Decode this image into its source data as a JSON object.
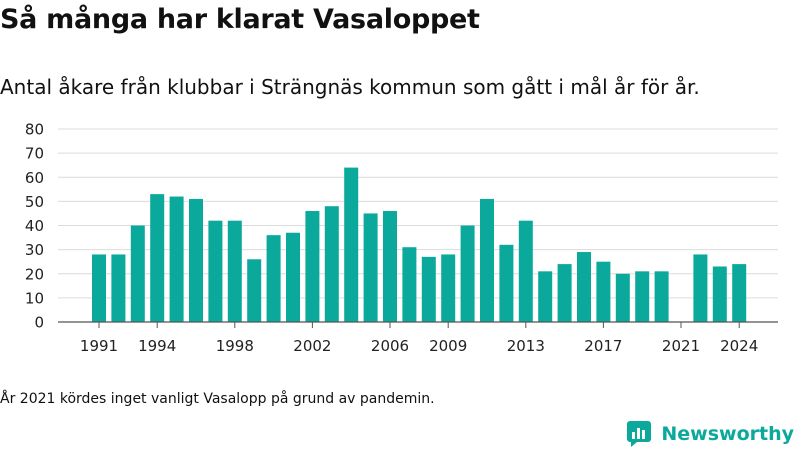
{
  "chart_data": {
    "type": "bar",
    "title": "Så många har klarat Vasaloppet",
    "subtitle": "Antal åkare från klubbar i Strängnäs kommun som gått i mål år för år.",
    "x": [
      1991,
      1992,
      1993,
      1994,
      1995,
      1996,
      1997,
      1998,
      1999,
      2000,
      2001,
      2002,
      2003,
      2004,
      2005,
      2006,
      2007,
      2008,
      2009,
      2010,
      2011,
      2012,
      2013,
      2014,
      2015,
      2016,
      2017,
      2018,
      2019,
      2020,
      2021,
      2022,
      2023,
      2024
    ],
    "values": [
      28,
      28,
      40,
      53,
      52,
      51,
      42,
      42,
      26,
      36,
      37,
      46,
      48,
      64,
      45,
      46,
      31,
      27,
      28,
      40,
      51,
      32,
      42,
      21,
      24,
      29,
      25,
      20,
      21,
      21,
      null,
      28,
      23,
      24
    ],
    "x_ticks": [
      "1991",
      "1994",
      "1998",
      "2002",
      "2006",
      "2009",
      "2013",
      "2017",
      "2021",
      "2024"
    ],
    "y_ticks": [
      "0",
      "10",
      "20",
      "30",
      "40",
      "50",
      "60",
      "70",
      "80"
    ],
    "ylim": [
      0,
      80
    ],
    "bar_color": "#0aa99c",
    "grid": true
  },
  "footnote": "År 2021 kördes inget vanligt Vasalopp på grund av pandemin.",
  "brand": {
    "name": "Newsworthy",
    "color": "#0aa99c",
    "icon": "newsworthy-logo-icon"
  }
}
